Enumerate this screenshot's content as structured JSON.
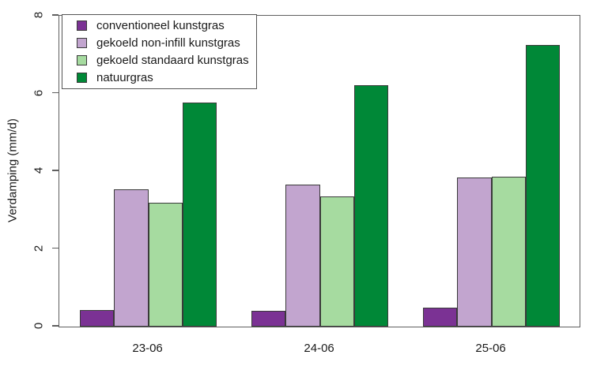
{
  "chart_data": {
    "type": "bar",
    "title": "",
    "categories": [
      "23-06",
      "24-06",
      "25-06"
    ],
    "series": [
      {
        "name": "conventioneel kunstgras",
        "color": "#7b3294",
        "values": [
          0.42,
          0.4,
          0.49
        ]
      },
      {
        "name": "gekoeld non-infill kunstgras",
        "color": "#c2a5cf",
        "values": [
          3.53,
          3.65,
          3.84
        ]
      },
      {
        "name": "gekoeld standaard kunstgras",
        "color": "#a6dba0",
        "values": [
          3.19,
          3.36,
          3.86
        ]
      },
      {
        "name": "natuurgras",
        "color": "#008837",
        "values": [
          5.77,
          6.21,
          7.24
        ]
      }
    ],
    "xlabel": "",
    "ylabel": "Verdamping (mm/d)",
    "ylim": [
      0,
      8
    ],
    "yticks": [
      0,
      2,
      4,
      6,
      8
    ],
    "grid": false,
    "legend_position": "top-left",
    "bar_border_color": "#3a3a3a",
    "axis_color": "#5f5f5f",
    "text_color": "#1a1a1a"
  }
}
